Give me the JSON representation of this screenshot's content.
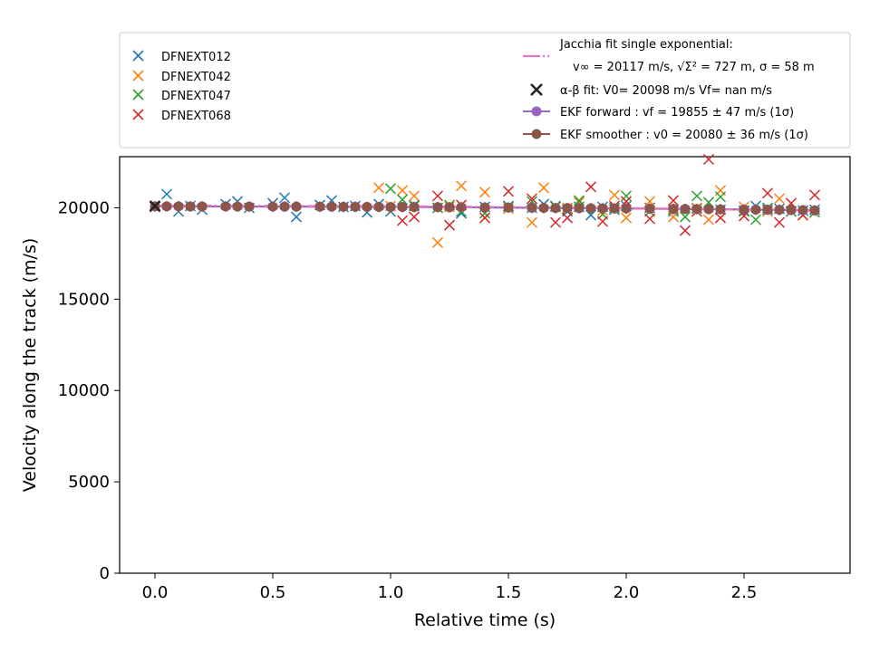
{
  "colors": {
    "blue": "#1f77b4",
    "orange": "#ff7f0e",
    "green": "#2ca02c",
    "red": "#d62728",
    "pink": "#e377c2",
    "purple": "#9467bd",
    "brown": "#8c564b",
    "black": "#222222"
  },
  "legend": {
    "left": [
      "DFNEXT012",
      "DFNEXT042",
      "DFNEXT047",
      "DFNEXT068"
    ],
    "jacchia_line1": "Jacchia fit single exponential:",
    "jacchia_line2": "v∞ = 20117 m/s, √Σ² = 727 m, σ = 58 m",
    "alphabeta": "α-β fit: V0= 20098 m/s   Vf= nan m/s",
    "ekf_forward": "EKF forward : vf =  19855 ± 47 m/s (1σ)",
    "ekf_smoother": "EKF smoother : v0 =  20080 ± 36 m/s (1σ)"
  },
  "chart_data": {
    "type": "scatter",
    "xlabel": "Relative time (s)",
    "ylabel": "Velocity along the track (m/s)",
    "xlim": [
      -0.15,
      2.95
    ],
    "ylim": [
      0,
      22800
    ],
    "xticks": [
      "0.0",
      "0.5",
      "1.0",
      "1.5",
      "2.0",
      "2.5"
    ],
    "yticks": [
      "0",
      "5000",
      "10000",
      "15000",
      "20000"
    ],
    "grid": false,
    "legend_placement": "above plot",
    "series": [
      {
        "name": "DFNEXT012",
        "x": [
          0.0,
          0.05,
          0.1,
          0.15,
          0.2,
          0.3,
          0.35,
          0.4,
          0.5,
          0.55,
          0.6,
          0.7,
          0.75,
          0.8,
          0.85,
          0.9,
          0.95,
          1.0,
          1.1,
          1.2,
          1.3,
          1.4,
          1.5,
          1.6,
          1.65,
          1.7,
          1.75,
          1.8,
          1.85,
          1.9,
          1.95,
          2.0,
          2.1,
          2.2,
          2.3,
          2.4,
          2.5,
          2.55,
          2.6,
          2.65,
          2.7,
          2.75,
          2.8
        ],
        "y": [
          20050,
          20750,
          19800,
          20100,
          19900,
          20200,
          20350,
          20000,
          20250,
          20550,
          19500,
          20150,
          20400,
          20050,
          20100,
          19750,
          20200,
          19800,
          20150,
          20000,
          19700,
          20050,
          20100,
          20000,
          20200,
          20100,
          19800,
          20050,
          19600,
          20050,
          19900,
          20100,
          20000,
          19800,
          19950,
          19900,
          19850,
          20100,
          19900,
          19950,
          19800,
          19850,
          19900
        ]
      },
      {
        "name": "DFNEXT042",
        "x": [
          0.95,
          1.0,
          1.05,
          1.1,
          1.2,
          1.25,
          1.3,
          1.4,
          1.5,
          1.6,
          1.65,
          1.75,
          1.8,
          1.9,
          1.95,
          2.0,
          2.1,
          2.2,
          2.3,
          2.35,
          2.4,
          2.5,
          2.6,
          2.65,
          2.75
        ],
        "y": [
          21100,
          20100,
          20950,
          20650,
          18100,
          20050,
          21200,
          20850,
          19950,
          19200,
          21100,
          20000,
          20300,
          19850,
          20700,
          19450,
          20350,
          19500,
          20000,
          19350,
          20950,
          20050,
          19800,
          20500,
          19600
        ]
      },
      {
        "name": "DFNEXT047",
        "x": [
          1.0,
          1.05,
          1.1,
          1.2,
          1.25,
          1.3,
          1.4,
          1.5,
          1.6,
          1.7,
          1.75,
          1.8,
          1.9,
          1.95,
          2.0,
          2.1,
          2.2,
          2.25,
          2.3,
          2.35,
          2.4,
          2.5,
          2.55,
          2.6,
          2.7,
          2.8
        ],
        "y": [
          21050,
          20450,
          20100,
          20000,
          20150,
          19800,
          19700,
          20050,
          20350,
          20050,
          19900,
          20400,
          19650,
          20000,
          20650,
          19800,
          19900,
          19500,
          20650,
          20300,
          20600,
          19800,
          19350,
          20000,
          19800,
          19750
        ]
      },
      {
        "name": "DFNEXT068",
        "x": [
          0.0,
          1.05,
          1.1,
          1.2,
          1.25,
          1.3,
          1.4,
          1.5,
          1.6,
          1.7,
          1.75,
          1.85,
          1.9,
          1.95,
          2.0,
          2.1,
          2.2,
          2.25,
          2.3,
          2.35,
          2.4,
          2.5,
          2.6,
          2.65,
          2.7,
          2.75,
          2.8
        ],
        "y": [
          20050,
          19300,
          19500,
          20650,
          19050,
          20150,
          19450,
          20900,
          20500,
          19200,
          19450,
          21150,
          19250,
          20100,
          20350,
          19400,
          20400,
          18750,
          19800,
          22650,
          19450,
          19550,
          20800,
          19200,
          20250,
          19600,
          20700
        ]
      },
      {
        "name": "Jacchia fit single exponential:",
        "type": "line",
        "x": [
          0.0,
          0.5,
          1.0,
          1.5,
          2.0,
          2.5,
          2.8
        ],
        "y": [
          20117,
          20105,
          20080,
          20040,
          19980,
          19900,
          19850
        ]
      },
      {
        "name": "α-β fit: V0= 20098 m/s   Vf= nan m/s",
        "x": [
          0.0
        ],
        "y": [
          20098
        ]
      },
      {
        "name": "EKF forward",
        "x": [
          0.0,
          0.05,
          0.1,
          0.15,
          0.2,
          0.3,
          0.35,
          0.4,
          0.5,
          0.55,
          0.6,
          0.7,
          0.75,
          0.8,
          0.85,
          0.9,
          0.95,
          1.0,
          1.05,
          1.1,
          1.2,
          1.25,
          1.3,
          1.4,
          1.5,
          1.6,
          1.65,
          1.7,
          1.75,
          1.8,
          1.85,
          1.9,
          1.95,
          2.0,
          2.1,
          2.2,
          2.25,
          2.3,
          2.35,
          2.4,
          2.5,
          2.55,
          2.6,
          2.65,
          2.7,
          2.75,
          2.8
        ],
        "y": [
          20080,
          20080,
          20080,
          20075,
          20075,
          20075,
          20070,
          20070,
          20070,
          20065,
          20065,
          20060,
          20060,
          20055,
          20055,
          20050,
          20050,
          20045,
          20045,
          20040,
          20035,
          20030,
          20030,
          20020,
          20010,
          20000,
          19995,
          19990,
          19985,
          19980,
          19975,
          19970,
          19965,
          19960,
          19950,
          19940,
          19935,
          19930,
          19925,
          19920,
          19905,
          19900,
          19895,
          19890,
          19880,
          19870,
          19860
        ]
      },
      {
        "name": "EKF smoother",
        "x": [
          0.0,
          0.05,
          0.1,
          0.15,
          0.2,
          0.3,
          0.35,
          0.4,
          0.5,
          0.55,
          0.6,
          0.7,
          0.75,
          0.8,
          0.85,
          0.9,
          0.95,
          1.0,
          1.05,
          1.1,
          1.2,
          1.25,
          1.3,
          1.4,
          1.5,
          1.6,
          1.65,
          1.7,
          1.75,
          1.8,
          1.85,
          1.9,
          1.95,
          2.0,
          2.1,
          2.2,
          2.25,
          2.3,
          2.35,
          2.4,
          2.5,
          2.55,
          2.6,
          2.65,
          2.7,
          2.75,
          2.8
        ],
        "y": [
          20080,
          20080,
          20080,
          20075,
          20075,
          20075,
          20070,
          20070,
          20070,
          20065,
          20065,
          20060,
          20060,
          20055,
          20055,
          20050,
          20050,
          20045,
          20045,
          20040,
          20035,
          20030,
          20030,
          20020,
          20010,
          20000,
          19995,
          19990,
          19985,
          19980,
          19975,
          19970,
          19965,
          19960,
          19950,
          19940,
          19935,
          19930,
          19925,
          19920,
          19905,
          19900,
          19895,
          19890,
          19880,
          19870,
          19860
        ]
      }
    ]
  }
}
